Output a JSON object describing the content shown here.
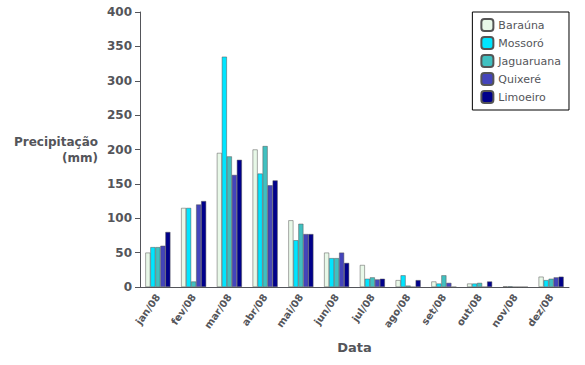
{
  "chart_data": {
    "type": "bar",
    "categories": [
      "jan/08",
      "fev/08",
      "mar/08",
      "abr/08",
      "mai/08",
      "jun/08",
      "jul/08",
      "ago/08",
      "set/08",
      "out/08",
      "nov/08",
      "dez/08"
    ],
    "series": [
      {
        "name": "Baraúna",
        "color": "#e8f8e8",
        "values": [
          50,
          115,
          195,
          200,
          97,
          50,
          32,
          10,
          8,
          5,
          1,
          15
        ]
      },
      {
        "name": "Mossoró",
        "color": "#00e5ff",
        "values": [
          58,
          115,
          335,
          165,
          68,
          42,
          12,
          17,
          5,
          5,
          1,
          10
        ]
      },
      {
        "name": "Jaguaruana",
        "color": "#40c0c0",
        "values": [
          58,
          8,
          190,
          205,
          92,
          42,
          14,
          2,
          17,
          6,
          0,
          12
        ]
      },
      {
        "name": "Quixeré",
        "color": "#4444bb",
        "values": [
          60,
          120,
          163,
          148,
          77,
          50,
          11,
          0,
          6,
          0,
          0,
          14
        ]
      },
      {
        "name": "Limoeiro",
        "color": "#00008b",
        "values": [
          80,
          125,
          185,
          155,
          77,
          35,
          12,
          10,
          0,
          8,
          0,
          15
        ]
      }
    ],
    "xlabel": "Data",
    "ylabel": "Precipitação\n(mm)",
    "ylim": [
      0,
      400
    ],
    "yticks": [
      0,
      50,
      100,
      150,
      200,
      250,
      300,
      350,
      400
    ],
    "grid": false,
    "legend": "upper right"
  }
}
